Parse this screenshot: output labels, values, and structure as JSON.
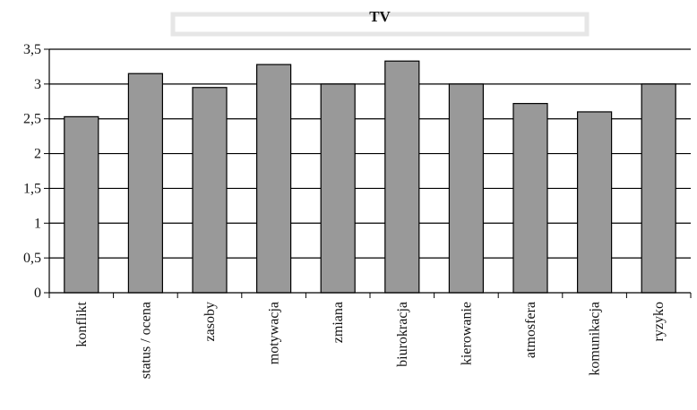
{
  "chart_data": {
    "type": "bar",
    "title": "TV",
    "categories": [
      "konflikt",
      "status / ocena",
      "zasoby",
      "motywacja",
      "zmiana",
      "biurokracja",
      "kierowanie",
      "atmosfera",
      "komunikacja",
      "ryzyko"
    ],
    "values": [
      2.53,
      3.15,
      2.95,
      3.28,
      3.0,
      3.33,
      3.0,
      2.72,
      2.6,
      3.0
    ],
    "ylim": [
      0,
      3.5
    ],
    "y_ticks": [
      {
        "value": 0,
        "label": "0"
      },
      {
        "value": 0.5,
        "label": "0,5"
      },
      {
        "value": 1,
        "label": "1"
      },
      {
        "value": 1.5,
        "label": "1,5"
      },
      {
        "value": 2,
        "label": "2"
      },
      {
        "value": 2.5,
        "label": "2,5"
      },
      {
        "value": 3,
        "label": "3"
      },
      {
        "value": 3.5,
        "label": "3,5"
      }
    ],
    "grid": true,
    "bar_color": "#999999",
    "bar_stroke": "#000000"
  }
}
